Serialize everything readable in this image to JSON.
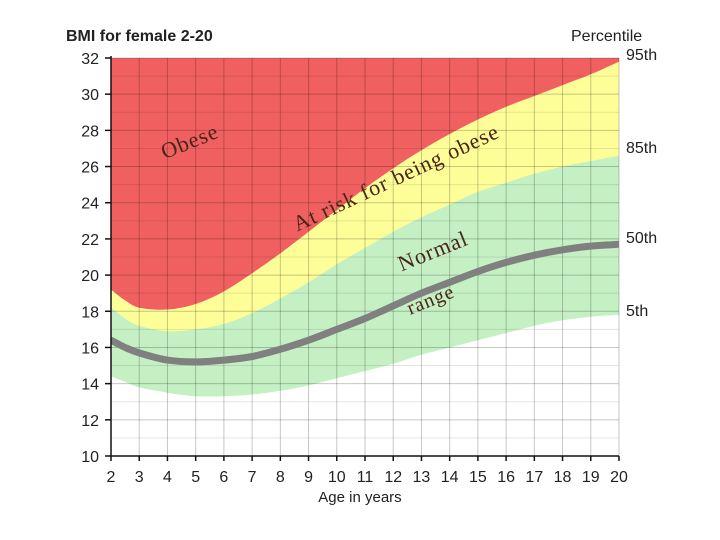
{
  "chart_data": {
    "type": "area",
    "title": "BMI for female 2-20",
    "xlabel": "Age in years",
    "ylabel": "",
    "percentile_heading": "Percentile",
    "x": [
      2,
      2.5,
      3,
      4,
      5,
      6,
      7,
      8,
      9,
      10,
      11,
      12,
      13,
      14,
      15,
      16,
      17,
      18,
      19,
      20
    ],
    "xlim": [
      2,
      20
    ],
    "ylim": [
      10,
      32
    ],
    "x_ticks": [
      2,
      3,
      4,
      5,
      6,
      7,
      8,
      9,
      10,
      11,
      12,
      13,
      14,
      15,
      16,
      17,
      18,
      19,
      20
    ],
    "y_ticks": [
      10,
      12,
      14,
      16,
      18,
      20,
      22,
      24,
      26,
      28,
      30,
      32
    ],
    "grid": true,
    "series": [
      {
        "name": "5th",
        "label": "5th",
        "color": "#ffffff",
        "values": [
          14.4,
          14.1,
          13.8,
          13.5,
          13.3,
          13.3,
          13.4,
          13.6,
          13.9,
          14.3,
          14.7,
          15.1,
          15.6,
          16.0,
          16.4,
          16.8,
          17.2,
          17.5,
          17.7,
          17.8
        ]
      },
      {
        "name": "50th",
        "label": "50th",
        "color": "#c4f0c4",
        "values": [
          16.4,
          16.0,
          15.7,
          15.3,
          15.2,
          15.3,
          15.5,
          15.9,
          16.4,
          17.0,
          17.6,
          18.3,
          19.0,
          19.6,
          20.2,
          20.7,
          21.1,
          21.4,
          21.6,
          21.7
        ]
      },
      {
        "name": "85th",
        "label": "85th",
        "color": "#c4f0c4",
        "values": [
          18.2,
          17.6,
          17.2,
          16.9,
          17.0,
          17.3,
          17.9,
          18.7,
          19.6,
          20.6,
          21.5,
          22.4,
          23.2,
          23.9,
          24.6,
          25.1,
          25.6,
          26.0,
          26.3,
          26.6
        ]
      },
      {
        "name": "95th",
        "label": "95th",
        "color": "#fefe98",
        "values": [
          19.2,
          18.6,
          18.2,
          18.1,
          18.4,
          19.1,
          20.1,
          21.2,
          22.4,
          23.6,
          24.8,
          25.9,
          26.9,
          27.8,
          28.6,
          29.3,
          29.9,
          30.5,
          31.1,
          31.8
        ]
      }
    ],
    "median_line": {
      "series": "50th",
      "color": "#808080"
    },
    "obese_region": {
      "color": "#f06060"
    },
    "annotations": [
      {
        "text": "Obese",
        "x": 3.9,
        "y": 26.4,
        "angle": -22,
        "size": 22
      },
      {
        "text": "At risk for being obese",
        "x": 8.6,
        "y": 22.4,
        "angle": -25,
        "size": 22
      },
      {
        "text": "Normal",
        "x": 12.3,
        "y": 20.2,
        "angle": -22,
        "size": 22
      },
      {
        "text": "range",
        "x": 12.6,
        "y": 17.8,
        "angle": -22,
        "size": 20
      }
    ]
  }
}
